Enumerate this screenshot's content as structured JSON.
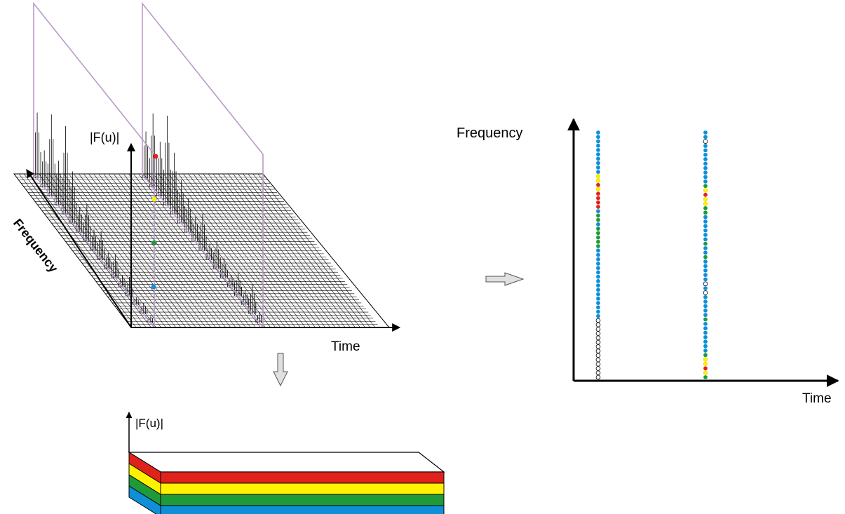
{
  "labels": {
    "magnitude_3d": "|F(u)|",
    "frequency_3d": "Frequency",
    "time_3d": "Time",
    "magnitude_bar": "|F(u)|",
    "frequency_right": "Frequency",
    "time_right": "Time"
  },
  "colors": {
    "red": "#e0221c",
    "yellow": "#fff200",
    "green": "#1f9a3a",
    "blue": "#0f8fd8",
    "hollow": "#ffffff",
    "purple": "#b99ac8",
    "arrow_fill": "#e0e0e0"
  },
  "band_colors": [
    "red",
    "yellow",
    "green",
    "blue"
  ],
  "spectrogram_dots": [
    {
      "name": "frame-1",
      "levels": [
        "blue",
        "blue",
        "blue",
        "blue",
        "blue",
        "blue",
        "blue",
        "blue",
        "blue",
        "blue",
        "yellow",
        "yellow",
        "red",
        "yellow",
        "red",
        "red",
        "red",
        "red",
        "blue",
        "green",
        "green",
        "blue",
        "green",
        "green",
        "green",
        "green",
        "green",
        "blue",
        "blue",
        "blue",
        "blue",
        "blue",
        "blue",
        "blue",
        "blue",
        "blue",
        "blue",
        "blue",
        "blue",
        "blue",
        "blue",
        "blue",
        "blue",
        "hollow",
        "hollow",
        "hollow",
        "hollow",
        "hollow",
        "hollow",
        "hollow",
        "hollow",
        "hollow",
        "hollow",
        "hollow",
        "hollow",
        "hollow",
        "hollow"
      ]
    },
    {
      "name": "frame-2",
      "levels": [
        "blue",
        "blue",
        "hollow",
        "blue",
        "blue",
        "blue",
        "blue",
        "blue",
        "blue",
        "blue",
        "blue",
        "blue",
        "green",
        "yellow",
        "red",
        "yellow",
        "yellow",
        "green",
        "green",
        "blue",
        "blue",
        "blue",
        "blue",
        "blue",
        "blue",
        "green",
        "blue",
        "blue",
        "green",
        "blue",
        "blue",
        "blue",
        "blue",
        "blue",
        "hollow",
        "blue",
        "hollow",
        "blue",
        "blue",
        "blue",
        "blue",
        "blue",
        "green",
        "blue",
        "blue",
        "blue",
        "blue",
        "blue",
        "blue",
        "blue",
        "green",
        "yellow",
        "yellow",
        "red",
        "yellow",
        "green"
      ]
    }
  ],
  "spectrum_frames": [
    {
      "name": "frame-1",
      "peaks": [
        0.7,
        0.4,
        0.9,
        0.5,
        1.0,
        0.6,
        0.3,
        0.45,
        0.25,
        0.35,
        0.2,
        0.3,
        0.15,
        0.25,
        0.1,
        0.15,
        0.1
      ]
    },
    {
      "name": "frame-2",
      "peaks": [
        0.5,
        0.8,
        0.6,
        1.0,
        0.7,
        0.5,
        0.4,
        0.3,
        0.45,
        0.2,
        0.35,
        0.25,
        0.15,
        0.3,
        0.2,
        0.4,
        0.15
      ]
    }
  ]
}
